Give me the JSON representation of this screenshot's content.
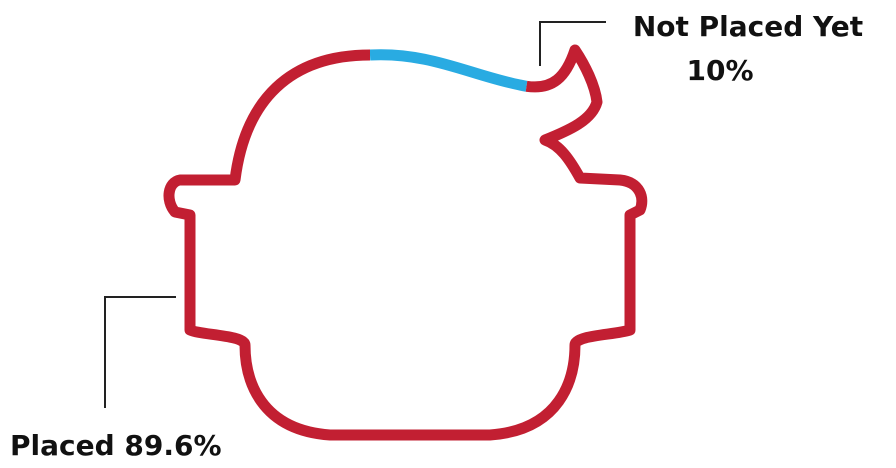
{
  "chart_data": {
    "type": "outline",
    "categories": [
      "Not Placed Yet",
      "Placed"
    ],
    "values": [
      10,
      89.6
    ],
    "value_labels": [
      "10%",
      "89.6%"
    ],
    "colors": [
      "#29abe2",
      "#c21f32"
    ]
  }
}
